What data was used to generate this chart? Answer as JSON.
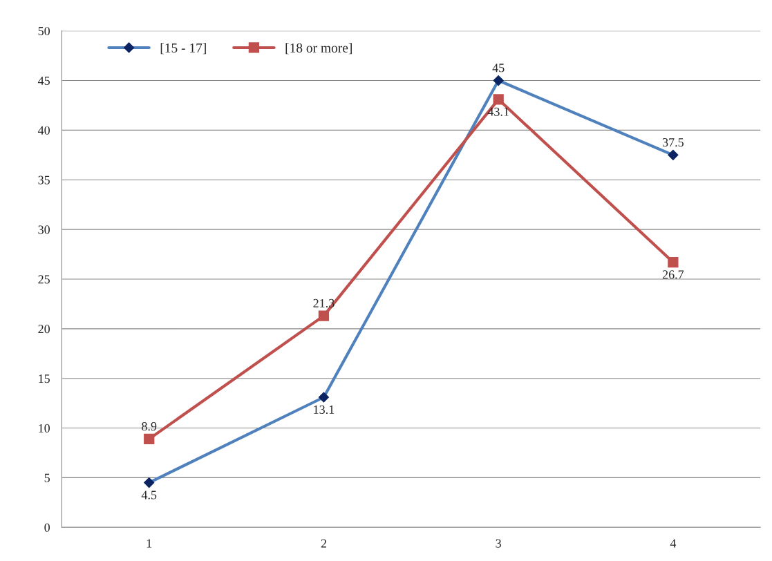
{
  "chart_data": {
    "type": "line",
    "categories": [
      "1",
      "2",
      "3",
      "4"
    ],
    "series": [
      {
        "name": "[15 - 17]",
        "color": "#4f81bd",
        "marker": "diamond",
        "values": [
          4.5,
          13.1,
          45,
          37.5
        ]
      },
      {
        "name": "[18 or more]",
        "color": "#c0504d",
        "marker": "square",
        "values": [
          8.9,
          21.3,
          43.1,
          26.7
        ]
      }
    ],
    "ylim": [
      0,
      50
    ],
    "yticks": [
      0,
      5,
      10,
      15,
      20,
      25,
      30,
      35,
      40,
      45,
      50
    ],
    "grid": "y",
    "legend": "top left",
    "data_labels": true
  }
}
